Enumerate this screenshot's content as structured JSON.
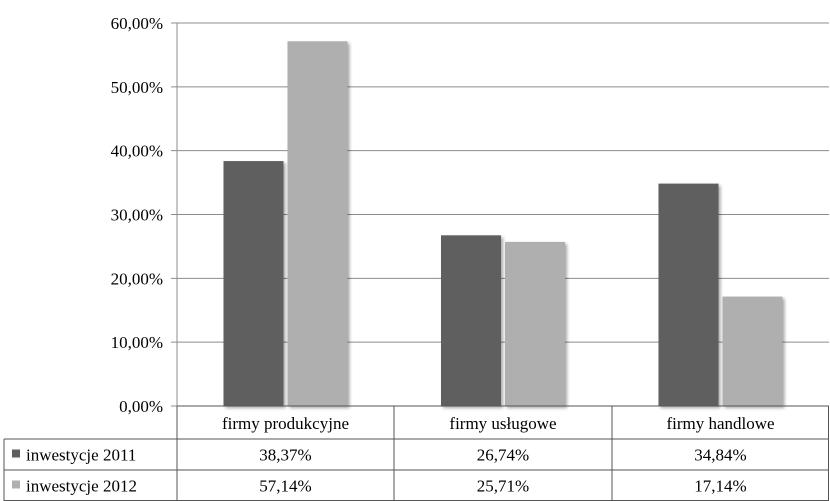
{
  "chart_data": {
    "type": "bar",
    "categories": [
      "firmy produkcyjne",
      "firmy usługowe",
      "firmy handlowe"
    ],
    "series": [
      {
        "name": "inwestycje 2011",
        "values": [
          38.37,
          26.74,
          34.84
        ],
        "labels": [
          "38,37%",
          "26,74%",
          "34,84%"
        ],
        "color": "#5f5f5f"
      },
      {
        "name": "inwestycje 2012",
        "values": [
          57.14,
          25.71,
          17.14
        ],
        "labels": [
          "57,14%",
          "25,71%",
          "17,14%"
        ],
        "color": "#afafaf"
      }
    ],
    "yticks": [
      0,
      10,
      20,
      30,
      40,
      50,
      60
    ],
    "ytick_labels": [
      "0,00%",
      "10,00%",
      "20,00%",
      "30,00%",
      "40,00%",
      "50,00%",
      "60,00%"
    ],
    "ylim": [
      0,
      60
    ],
    "grid": true,
    "legend": "data-table",
    "title": "",
    "xlabel": "",
    "ylabel": ""
  }
}
